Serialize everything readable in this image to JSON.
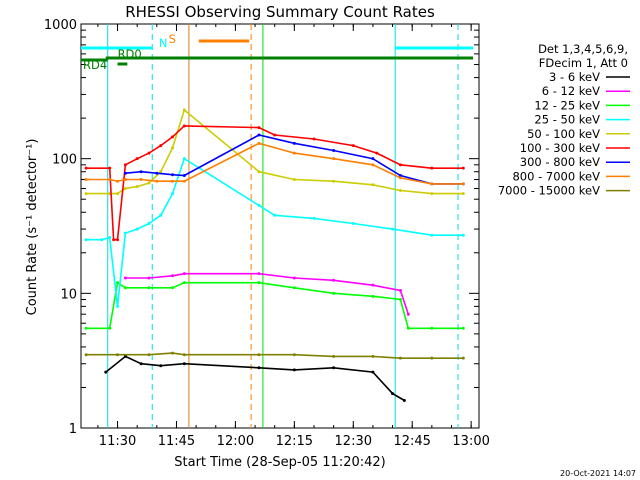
{
  "chart_data": {
    "type": "line",
    "title": "RHESSI Observing Summary Count Rates",
    "xlabel": "Start Time (28-Sep-05 11:20:42)",
    "ylabel": "Count Rate (s⁻¹ detector⁻¹)",
    "y_scale": "log",
    "ylim": [
      1,
      1000
    ],
    "xlim": [
      "11:20:42",
      "13:02:00"
    ],
    "x_ticks": [
      "11:30",
      "11:45",
      "12:00",
      "12:15",
      "12:30",
      "12:45",
      "13:00"
    ],
    "y_ticks": [
      "1",
      "10",
      "100",
      "1000"
    ],
    "legend_position": "right",
    "legend_header": [
      "Det 1,3,4,5,6,9,",
      "FDecim 1, Att 0"
    ],
    "footer_date": "20-Oct-2021 14:07",
    "flags": [
      {
        "label": "N",
        "color": "#00ffff"
      },
      {
        "label": "S",
        "color": "#ff7f00"
      },
      {
        "label": "RD0",
        "color": "#008000"
      },
      {
        "label": "RD4",
        "color": "#008000"
      }
    ],
    "vertical_markers": [
      {
        "time": "11:27:30",
        "color": "#00e0e0",
        "style": "solid"
      },
      {
        "time": "11:38:50",
        "color": "#00e0e0",
        "style": "dashed"
      },
      {
        "time": "11:48:10",
        "color": "#d08020",
        "style": "solid"
      },
      {
        "time": "12:04:00",
        "color": "#ff7f00",
        "style": "dashed"
      },
      {
        "time": "12:07:00",
        "color": "#00e000",
        "style": "solid"
      },
      {
        "time": "12:40:40",
        "color": "#00e0e0",
        "style": "solid"
      },
      {
        "time": "12:56:40",
        "color": "#00e0e0",
        "style": "dashed"
      }
    ],
    "series": [
      {
        "name": "3 - 6 keV",
        "color": "#000000",
        "x": [
          "11:27:00",
          "11:32:00",
          "11:36:00",
          "11:41:00",
          "11:47:00",
          "12:06:00",
          "12:15:00",
          "12:25:00",
          "12:35:00",
          "12:40:00",
          "12:43:00"
        ],
        "values": [
          2.6,
          3.4,
          3.0,
          2.9,
          3.0,
          2.8,
          2.7,
          2.8,
          2.6,
          1.8,
          1.6
        ]
      },
      {
        "name": "6 - 12 keV",
        "color": "#ff00ff",
        "x": [
          "11:32:00",
          "11:38:00",
          "11:44:00",
          "11:47:00",
          "12:06:00",
          "12:15:00",
          "12:25:00",
          "12:35:00",
          "12:42:00",
          "12:44:00"
        ],
        "values": [
          13,
          13,
          13.5,
          14,
          14,
          13,
          12.5,
          11.5,
          10.5,
          7.0
        ]
      },
      {
        "name": "12 - 25 keV",
        "color": "#00ff00",
        "x": [
          "11:22:00",
          "11:28:00",
          "11:30:00",
          "11:32:00",
          "11:38:00",
          "11:44:00",
          "11:47:00",
          "12:06:00",
          "12:15:00",
          "12:25:00",
          "12:35:00",
          "12:42:00",
          "12:44:00",
          "12:50:00",
          "12:58:00"
        ],
        "values": [
          5.5,
          5.5,
          12,
          11,
          11,
          11,
          12,
          12,
          11,
          10,
          9.5,
          9.0,
          5.5,
          5.5,
          5.5
        ]
      },
      {
        "name": "25 - 50 keV",
        "color": "#00ffff",
        "x": [
          "11:22:00",
          "11:26:00",
          "11:28:00",
          "11:30:00",
          "11:32:00",
          "11:35:00",
          "11:38:00",
          "11:41:00",
          "11:44:00",
          "11:47:00",
          "12:06:00",
          "12:10:00",
          "12:20:00",
          "12:30:00",
          "12:40:00",
          "12:50:00",
          "12:58:00"
        ],
        "values": [
          25,
          25,
          26,
          8.0,
          28,
          30,
          33,
          38,
          55,
          100,
          45,
          38,
          36,
          33,
          30,
          27,
          27
        ]
      },
      {
        "name": "50 - 100 keV",
        "color": "#cccc00",
        "x": [
          "11:22:00",
          "11:28:00",
          "11:30:00",
          "11:32:00",
          "11:35:00",
          "11:38:00",
          "11:41:00",
          "11:44:00",
          "11:47:00",
          "12:06:00",
          "12:15:00",
          "12:25:00",
          "12:35:00",
          "12:42:00",
          "12:50:00",
          "12:58:00"
        ],
        "values": [
          55,
          55,
          55,
          60,
          62,
          66,
          80,
          120,
          230,
          80,
          70,
          68,
          64,
          58,
          55,
          55
        ]
      },
      {
        "name": "100 - 300 keV",
        "color": "#ff0000",
        "x": [
          "11:22:00",
          "11:28:00",
          "11:29:00",
          "11:30:00",
          "11:32:00",
          "11:35:00",
          "11:38:00",
          "11:41:00",
          "11:44:00",
          "11:47:00",
          "12:06:00",
          "12:10:00",
          "12:20:00",
          "12:30:00",
          "12:36:00",
          "12:42:00",
          "12:50:00",
          "12:58:00"
        ],
        "values": [
          85,
          85,
          25,
          25,
          90,
          100,
          110,
          125,
          145,
          175,
          170,
          150,
          140,
          125,
          110,
          90,
          85,
          85
        ]
      },
      {
        "name": "300 - 800 keV",
        "color": "#0000ff",
        "x": [
          "11:32:00",
          "11:36:00",
          "11:40:00",
          "11:44:00",
          "11:47:00",
          "12:06:00",
          "12:15:00",
          "12:25:00",
          "12:35:00",
          "12:42:00",
          "12:50:00",
          "12:58:00"
        ],
        "values": [
          78,
          80,
          78,
          76,
          75,
          150,
          130,
          115,
          100,
          75,
          65,
          65
        ]
      },
      {
        "name": "800 - 7000 keV",
        "color": "#ff7f00",
        "x": [
          "11:22:00",
          "11:28:00",
          "11:30:00",
          "11:32:00",
          "11:36:00",
          "11:40:00",
          "11:44:00",
          "11:47:00",
          "12:06:00",
          "12:15:00",
          "12:25:00",
          "12:35:00",
          "12:42:00",
          "12:50:00",
          "12:58:00"
        ],
        "values": [
          70,
          70,
          68,
          70,
          70,
          68,
          68,
          68,
          130,
          110,
          100,
          90,
          72,
          65,
          65
        ]
      },
      {
        "name": "7000 - 15000 keV",
        "color": "#808000",
        "x": [
          "11:22:00",
          "11:30:00",
          "11:38:00",
          "11:44:00",
          "11:47:00",
          "12:06:00",
          "12:15:00",
          "12:25:00",
          "12:35:00",
          "12:42:00",
          "12:50:00",
          "12:58:00"
        ],
        "values": [
          3.5,
          3.5,
          3.5,
          3.6,
          3.5,
          3.5,
          3.5,
          3.4,
          3.4,
          3.3,
          3.3,
          3.3
        ]
      }
    ]
  }
}
